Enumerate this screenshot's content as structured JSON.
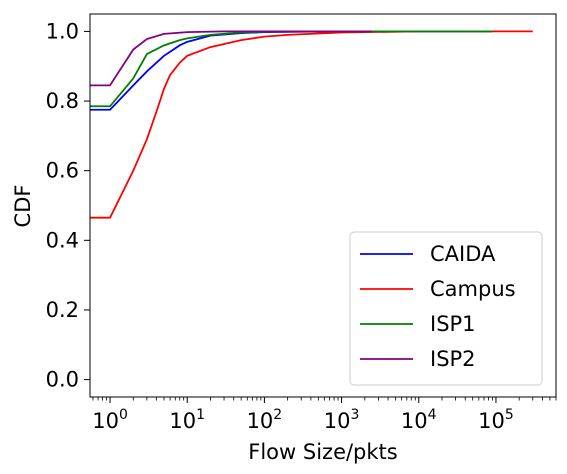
{
  "chart_data": {
    "type": "line",
    "xlabel": "Flow Size/pkts",
    "ylabel": "CDF",
    "xscale": "log",
    "xlim": [
      0.55,
      600000
    ],
    "ylim": [
      -0.05,
      1.05
    ],
    "grid": false,
    "legend_position": "lower right",
    "x_ticks": [
      {
        "base": "10",
        "exp": "0",
        "value": 1
      },
      {
        "base": "10",
        "exp": "1",
        "value": 10
      },
      {
        "base": "10",
        "exp": "2",
        "value": 100
      },
      {
        "base": "10",
        "exp": "3",
        "value": 1000
      },
      {
        "base": "10",
        "exp": "4",
        "value": 10000
      },
      {
        "base": "10",
        "exp": "5",
        "value": 100000
      }
    ],
    "y_ticks": [
      {
        "label": "0.0",
        "value": 0.0
      },
      {
        "label": "0.2",
        "value": 0.2
      },
      {
        "label": "0.4",
        "value": 0.4
      },
      {
        "label": "0.6",
        "value": 0.6
      },
      {
        "label": "0.8",
        "value": 0.8
      },
      {
        "label": "1.0",
        "value": 1.0
      }
    ],
    "series": [
      {
        "name": "CAIDA",
        "color": "#0000ff",
        "points": [
          [
            0.55,
            0.775
          ],
          [
            1,
            0.775
          ],
          [
            2,
            0.845
          ],
          [
            3,
            0.885
          ],
          [
            5,
            0.93
          ],
          [
            8,
            0.96
          ],
          [
            10,
            0.97
          ],
          [
            20,
            0.988
          ],
          [
            50,
            0.995
          ],
          [
            100,
            0.998
          ],
          [
            1000,
            1.0
          ],
          [
            90000,
            1.0
          ]
        ]
      },
      {
        "name": "Campus",
        "color": "#ff0000",
        "points": [
          [
            0.55,
            0.465
          ],
          [
            1,
            0.465
          ],
          [
            2,
            0.6
          ],
          [
            3,
            0.69
          ],
          [
            4,
            0.77
          ],
          [
            5,
            0.835
          ],
          [
            6,
            0.875
          ],
          [
            8,
            0.91
          ],
          [
            10,
            0.93
          ],
          [
            20,
            0.955
          ],
          [
            50,
            0.975
          ],
          [
            100,
            0.985
          ],
          [
            200,
            0.99
          ],
          [
            1000,
            0.997
          ],
          [
            10000,
            1.0
          ],
          [
            300000,
            1.0
          ]
        ]
      },
      {
        "name": "ISP1",
        "color": "#008000",
        "points": [
          [
            0.55,
            0.785
          ],
          [
            1,
            0.785
          ],
          [
            2,
            0.865
          ],
          [
            3,
            0.935
          ],
          [
            5,
            0.96
          ],
          [
            8,
            0.975
          ],
          [
            10,
            0.98
          ],
          [
            20,
            0.99
          ],
          [
            50,
            0.997
          ],
          [
            100,
            0.999
          ],
          [
            1000,
            1.0
          ],
          [
            90000,
            1.0
          ]
        ]
      },
      {
        "name": "ISP2",
        "color": "#800080",
        "points": [
          [
            0.55,
            0.845
          ],
          [
            1,
            0.845
          ],
          [
            2,
            0.948
          ],
          [
            3,
            0.978
          ],
          [
            5,
            0.993
          ],
          [
            10,
            0.998
          ],
          [
            30,
            1.0
          ],
          [
            2500,
            1.0
          ]
        ]
      }
    ]
  }
}
